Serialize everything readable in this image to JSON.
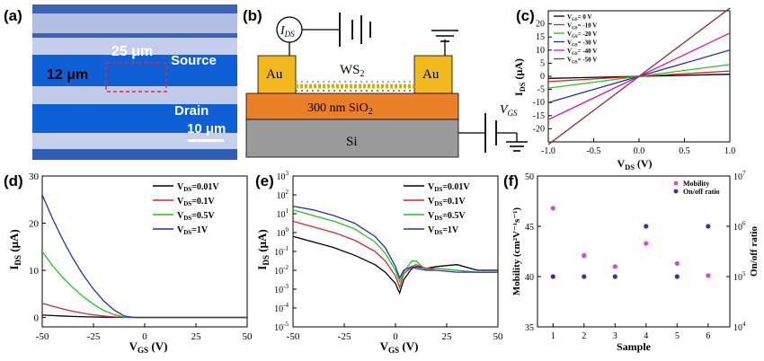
{
  "panels": {
    "a": {
      "letter": "(a)",
      "label_25": "25 μm",
      "label_12": "12 μm",
      "label_source": "Source",
      "label_drain": "Drain",
      "scale": "10 μm"
    },
    "b": {
      "letter": "(b)",
      "ids_label": "I",
      "ids_sub": "DS",
      "au_left": "Au",
      "au_right": "Au",
      "ws2": "WS",
      "ws2_sub": "2",
      "oxide": "300 nm SiO",
      "oxide_sub": "2",
      "si": "Si",
      "vgs_label": "V",
      "vgs_sub": "GS"
    },
    "c": {
      "letter": "(c)",
      "ylabel": "I",
      "ylabel_sub": "DS",
      "ylabel_unit": " (μA)",
      "xlabel": "V",
      "xlabel_sub": "DS",
      "xlabel_unit": " (V)",
      "legend": [
        "V_GS= 0 V",
        "V_GS= -10 V",
        "V_GS= -20 V",
        "V_GS= -30 V",
        "V_GS= -40 V",
        "V_GS= -50 V"
      ],
      "xticks": [
        "-1.0",
        "-0.5",
        "0.0",
        "0.5",
        "1.0"
      ],
      "yticks": [
        "20",
        "15",
        "10",
        "5",
        "0",
        "-5",
        "-10",
        "-15",
        "-20"
      ]
    },
    "d": {
      "letter": "(d)",
      "ylabel": "I",
      "ylabel_sub": "DS",
      "ylabel_unit": " (μA)",
      "xlabel": "V",
      "xlabel_sub": "GS",
      "xlabel_unit": " (V)",
      "legend": [
        "V_DS=0.01V",
        "V_DS=0.1V",
        "V_DS=0.5V",
        "V_DS=1V"
      ],
      "xticks": [
        "-50",
        "-25",
        "0",
        "25",
        "50"
      ],
      "yticks": [
        "30",
        "20",
        "10",
        "0"
      ]
    },
    "e": {
      "letter": "(e)",
      "ylabel": "I",
      "ylabel_sub": "DS",
      "ylabel_unit": " (μA)",
      "xlabel": "V",
      "xlabel_sub": "GS",
      "xlabel_unit": " (V)",
      "legend": [
        "V_DS=0.01V",
        "V_DS=0.1V",
        "V_DS=0.5V",
        "V_DS=1V"
      ],
      "xticks": [
        "-50",
        "-25",
        "0",
        "25",
        "50"
      ],
      "ytick_exps": [
        "3",
        "2",
        "1",
        "0",
        "-1",
        "-2",
        "-3",
        "-4",
        "-5"
      ]
    },
    "f": {
      "letter": "(f)",
      "ylabel_left": "Mobility (cm²V⁻¹s⁻¹)",
      "ylabel_right": "On/off ratio",
      "xlabel": "Sample",
      "legend": [
        "Mobility",
        "On/off ratio"
      ],
      "xticks": [
        "1",
        "2",
        "3",
        "4",
        "5",
        "6"
      ],
      "yticks_left": [
        "50",
        "45",
        "40",
        "35"
      ],
      "ytick_exps_right": [
        "7",
        "6",
        "5",
        "4"
      ]
    }
  },
  "colors": {
    "series": [
      "#000000",
      "#d62728",
      "#22c322",
      "#1f2fb4",
      "#e0109a",
      "#8b2d2d"
    ],
    "mobility": "#e040e0",
    "onoff": "#3030b0",
    "au": "#f2b81e",
    "sio2": "#ea7f2a",
    "si": "#9a9a9a"
  },
  "chart_data": [
    {
      "id": "c",
      "type": "line",
      "title": "",
      "xlabel": "VDS (V)",
      "ylabel": "IDS (μA)",
      "xlim": [
        -1.0,
        1.0
      ],
      "ylim": [
        -25,
        25
      ],
      "series": [
        {
          "name": "VGS= 0 V",
          "slope": 0.8
        },
        {
          "name": "VGS= -10 V",
          "slope": 2.0
        },
        {
          "name": "VGS= -20 V",
          "slope": 4.5
        },
        {
          "name": "VGS= -30 V",
          "slope": 10.0
        },
        {
          "name": "VGS= -40 V",
          "slope": 16.5
        },
        {
          "name": "VGS= -50 V",
          "slope": 26.0
        }
      ]
    },
    {
      "id": "d",
      "type": "line",
      "xlabel": "VGS (V)",
      "ylabel": "IDS (μA)",
      "xlim": [
        -50,
        50
      ],
      "ylim": [
        -2,
        30
      ],
      "x": [
        -50,
        -45,
        -40,
        -35,
        -30,
        -25,
        -20,
        -15,
        -10,
        -5,
        0,
        10,
        20,
        30,
        40,
        50
      ],
      "series": [
        {
          "name": "VDS=0.01V",
          "values": [
            0.5,
            0.4,
            0.3,
            0.22,
            0.15,
            0.1,
            0.05,
            0.02,
            0.0,
            0,
            0,
            0,
            0,
            0,
            0,
            0
          ]
        },
        {
          "name": "VDS=0.1V",
          "values": [
            3.0,
            2.4,
            1.8,
            1.3,
            0.9,
            0.55,
            0.3,
            0.12,
            0.03,
            0,
            0,
            0,
            0,
            0,
            0,
            0
          ]
        },
        {
          "name": "VDS=0.5V",
          "values": [
            14.0,
            11.0,
            8.5,
            6.3,
            4.4,
            2.8,
            1.5,
            0.6,
            0.1,
            0,
            0,
            0,
            0,
            0,
            0,
            0
          ]
        },
        {
          "name": "VDS=1V",
          "values": [
            26.0,
            21.0,
            16.5,
            12.5,
            9.0,
            6.0,
            3.5,
            1.6,
            0.3,
            0,
            0,
            0,
            0,
            0,
            0,
            0
          ]
        }
      ]
    },
    {
      "id": "e",
      "type": "line",
      "yscale": "log",
      "xlabel": "VGS (V)",
      "ylabel": "IDS (μA)",
      "xlim": [
        -50,
        50
      ],
      "ylim_exp": [
        -5,
        3
      ],
      "x": [
        -50,
        -40,
        -30,
        -20,
        -10,
        -5,
        0,
        2,
        4,
        8,
        10,
        15,
        20,
        30,
        40,
        50
      ],
      "series": [
        {
          "name": "VDS=0.01V",
          "log10": [
            -0.2,
            -0.5,
            -0.8,
            -1.2,
            -1.7,
            -2.1,
            -2.7,
            -3.2,
            -2.5,
            -1.9,
            -1.8,
            -1.9,
            -1.8,
            -1.7,
            -2.0,
            -2.0
          ]
        },
        {
          "name": "VDS=0.1V",
          "log10": [
            0.6,
            0.3,
            0.0,
            -0.4,
            -1.0,
            -1.5,
            -2.3,
            -2.9,
            -2.2,
            -1.8,
            -1.7,
            -1.9,
            -1.9,
            -2.0,
            -2.1,
            -2.1
          ]
        },
        {
          "name": "VDS=0.5V",
          "log10": [
            1.2,
            0.9,
            0.6,
            0.2,
            -0.5,
            -1.1,
            -2.0,
            -2.6,
            -2.1,
            -1.5,
            -1.5,
            -2.0,
            -1.9,
            -2.0,
            -2.1,
            -2.1
          ]
        },
        {
          "name": "VDS=1V",
          "log10": [
            1.4,
            1.2,
            0.9,
            0.5,
            -0.2,
            -0.8,
            -1.8,
            -2.4,
            -2.0,
            -1.8,
            -1.9,
            -2.0,
            -2.0,
            -2.1,
            -2.1,
            -2.1
          ]
        }
      ]
    },
    {
      "id": "f",
      "type": "scatter",
      "xlabel": "Sample",
      "ylabel": "Mobility (cm2V-1s-1)",
      "ylabel_right": "On/off ratio",
      "ylim": [
        35,
        50
      ],
      "ylim_right_exp": [
        4,
        7
      ],
      "x": [
        1,
        2,
        3,
        4,
        5,
        6
      ],
      "series": [
        {
          "name": "Mobility",
          "values": [
            46.8,
            42.1,
            41.0,
            43.3,
            41.3,
            40.1
          ]
        },
        {
          "name": "On/off ratio",
          "log10": [
            5,
            5,
            5,
            6,
            5,
            6
          ]
        }
      ]
    }
  ]
}
